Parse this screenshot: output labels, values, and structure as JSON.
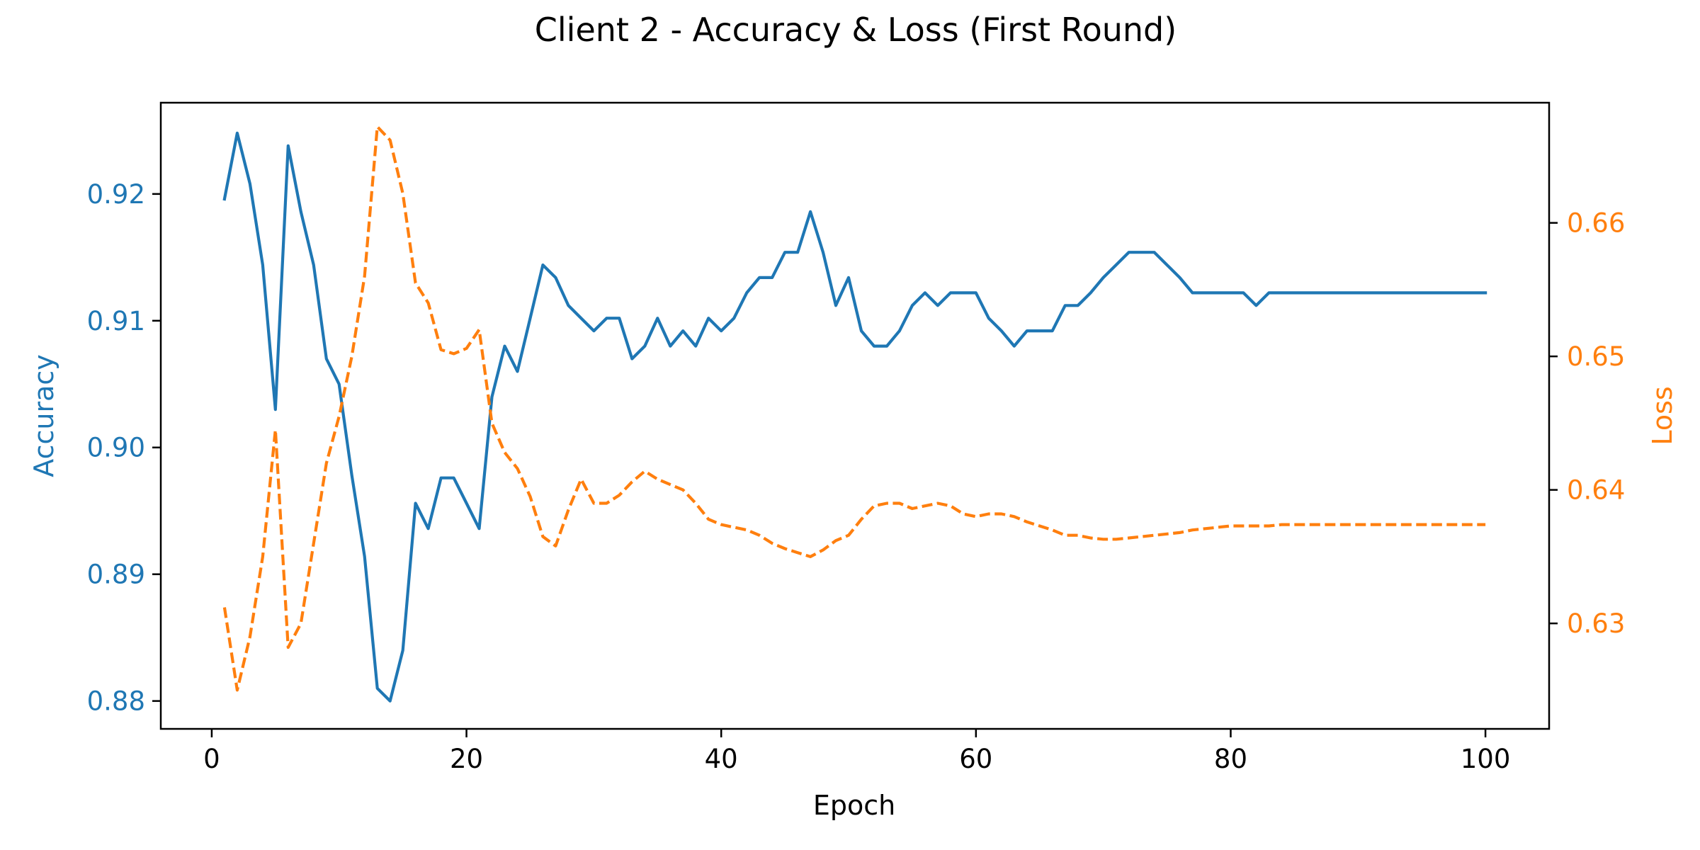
{
  "chart_data": {
    "type": "line",
    "title": "Client 2 - Accuracy & Loss (First Round)",
    "xlabel": "Epoch",
    "ylabel_left": "Accuracy",
    "ylabel_right": "Loss",
    "xlim": [
      -4,
      105
    ],
    "ylim_left": [
      0.8778,
      0.9272
    ],
    "ylim_right": [
      0.6221,
      0.669
    ],
    "x_ticks": [
      0,
      20,
      40,
      60,
      80,
      100
    ],
    "y_ticks_left": [
      0.88,
      0.89,
      0.9,
      0.91,
      0.92
    ],
    "y_ticks_right": [
      0.63,
      0.64,
      0.65,
      0.66
    ],
    "grid": false,
    "legend": "none",
    "x": [
      1,
      2,
      3,
      4,
      5,
      6,
      7,
      8,
      9,
      10,
      11,
      12,
      13,
      14,
      15,
      16,
      17,
      18,
      19,
      20,
      21,
      22,
      23,
      24,
      25,
      26,
      27,
      28,
      29,
      30,
      31,
      32,
      33,
      34,
      35,
      36,
      37,
      38,
      39,
      40,
      41,
      42,
      43,
      44,
      45,
      46,
      47,
      48,
      49,
      50,
      51,
      52,
      53,
      54,
      55,
      56,
      57,
      58,
      59,
      60,
      61,
      62,
      63,
      64,
      65,
      66,
      67,
      68,
      69,
      70,
      71,
      72,
      73,
      74,
      75,
      76,
      77,
      78,
      79,
      80,
      81,
      82,
      83,
      84,
      85,
      86,
      87,
      88,
      89,
      90,
      91,
      92,
      93,
      94,
      95,
      96,
      97,
      98,
      99,
      100
    ],
    "series": [
      {
        "name": "Accuracy",
        "axis": "left",
        "color": "#1f77b4",
        "dash": "solid",
        "values": [
          0.9196,
          0.9248,
          0.9208,
          0.9144,
          0.903,
          0.9238,
          0.9186,
          0.9144,
          0.907,
          0.905,
          0.8978,
          0.8914,
          0.881,
          0.88,
          0.884,
          0.8956,
          0.8936,
          0.8976,
          0.8976,
          0.8956,
          0.8936,
          0.904,
          0.908,
          0.906,
          0.9102,
          0.9144,
          0.9134,
          0.9112,
          0.9102,
          0.9092,
          0.9102,
          0.9102,
          0.907,
          0.908,
          0.9102,
          0.908,
          0.9092,
          0.908,
          0.9102,
          0.9092,
          0.9102,
          0.9122,
          0.9134,
          0.9134,
          0.9154,
          0.9154,
          0.9186,
          0.9154,
          0.9112,
          0.9134,
          0.9092,
          0.908,
          0.908,
          0.9092,
          0.9112,
          0.9122,
          0.9112,
          0.9122,
          0.9122,
          0.9122,
          0.9102,
          0.9092,
          0.908,
          0.9092,
          0.9092,
          0.9092,
          0.9112,
          0.9112,
          0.9122,
          0.9134,
          0.9144,
          0.9154,
          0.9154,
          0.9154,
          0.9144,
          0.9134,
          0.9122,
          0.9122,
          0.9122,
          0.9122,
          0.9122,
          0.9112,
          0.9122,
          0.9122,
          0.9122,
          0.9122,
          0.9122,
          0.9122,
          0.9122,
          0.9122,
          0.9122,
          0.9122,
          0.9122,
          0.9122,
          0.9122,
          0.9122,
          0.9122,
          0.9122,
          0.9122,
          0.9122
        ]
      },
      {
        "name": "Loss",
        "axis": "right",
        "color": "#ff7f0e",
        "dash": "dashed",
        "values": [
          0.6312,
          0.625,
          0.629,
          0.635,
          0.6445,
          0.6282,
          0.63,
          0.636,
          0.642,
          0.6455,
          0.65,
          0.656,
          0.6672,
          0.6662,
          0.6622,
          0.6555,
          0.654,
          0.6505,
          0.6502,
          0.6506,
          0.652,
          0.645,
          0.6428,
          0.6416,
          0.6395,
          0.6365,
          0.6358,
          0.6385,
          0.6408,
          0.639,
          0.639,
          0.6396,
          0.6406,
          0.6414,
          0.6408,
          0.6404,
          0.64,
          0.639,
          0.6378,
          0.6374,
          0.6372,
          0.637,
          0.6366,
          0.636,
          0.6356,
          0.6353,
          0.635,
          0.6355,
          0.6362,
          0.6366,
          0.6378,
          0.6388,
          0.639,
          0.639,
          0.6386,
          0.6388,
          0.639,
          0.6388,
          0.6382,
          0.638,
          0.6382,
          0.6382,
          0.638,
          0.6376,
          0.6373,
          0.637,
          0.6366,
          0.6366,
          0.6364,
          0.6363,
          0.6363,
          0.6364,
          0.6365,
          0.6366,
          0.6367,
          0.6368,
          0.637,
          0.6371,
          0.6372,
          0.6373,
          0.6373,
          0.6373,
          0.6373,
          0.6374,
          0.6374,
          0.6374,
          0.6374,
          0.6374,
          0.6374,
          0.6374,
          0.6374,
          0.6374,
          0.6374,
          0.6374,
          0.6374,
          0.6374,
          0.6374,
          0.6374,
          0.6374,
          0.6374
        ]
      }
    ]
  }
}
